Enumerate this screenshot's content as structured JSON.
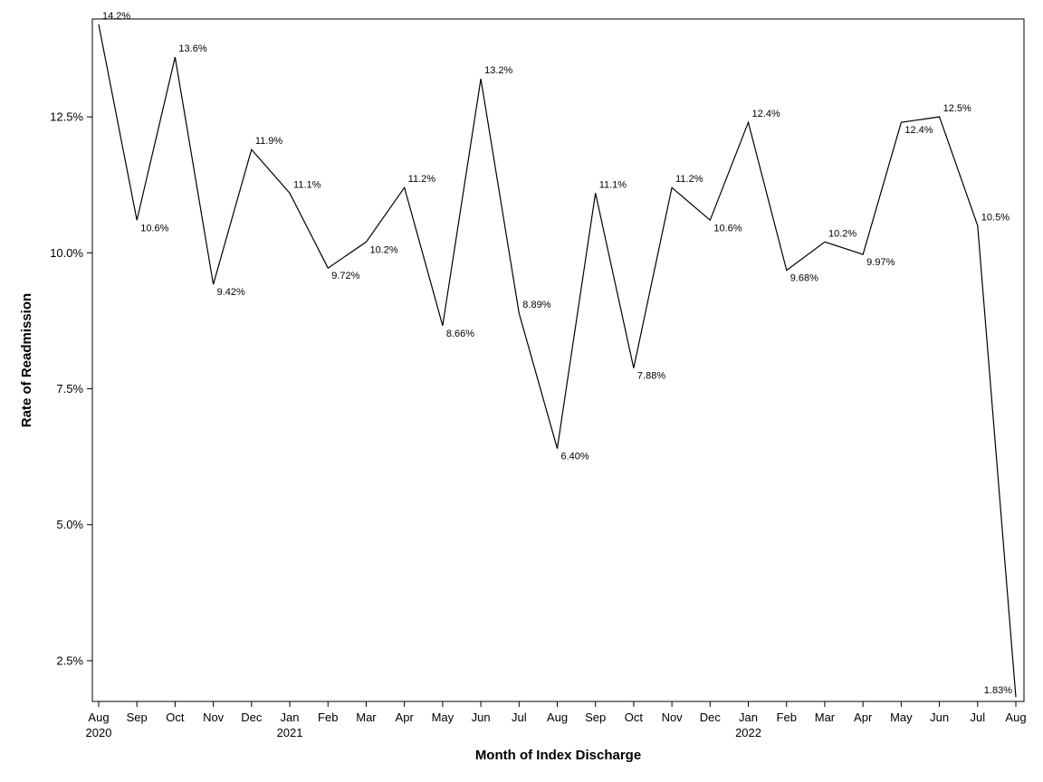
{
  "chart_data": {
    "type": "line",
    "title": "",
    "xlabel": "Month of Index Discharge",
    "ylabel": "Rate of Readmission",
    "ylim": [
      1.75,
      14.3
    ],
    "y_ticks": [
      {
        "value": 2.5,
        "label": "2.5%"
      },
      {
        "value": 5.0,
        "label": "5.0%"
      },
      {
        "value": 7.5,
        "label": "7.5%"
      },
      {
        "value": 10.0,
        "label": "10.0%"
      },
      {
        "value": 12.5,
        "label": "12.5%"
      }
    ],
    "categories": [
      "Aug",
      "Sep",
      "Oct",
      "Nov",
      "Dec",
      "Jan",
      "Feb",
      "Mar",
      "Apr",
      "May",
      "Jun",
      "Jul",
      "Aug",
      "Sep",
      "Oct",
      "Nov",
      "Dec",
      "Jan",
      "Feb",
      "Mar",
      "Apr",
      "May",
      "Jun",
      "Jul",
      "Aug"
    ],
    "year_labels": [
      {
        "index": 0,
        "label": "2020"
      },
      {
        "index": 5,
        "label": "2021"
      },
      {
        "index": 17,
        "label": "2022"
      }
    ],
    "series": [
      {
        "name": "Rate of Readmission",
        "values": [
          14.2,
          10.6,
          13.6,
          9.42,
          11.9,
          11.1,
          9.72,
          10.2,
          11.2,
          8.66,
          13.2,
          8.89,
          6.4,
          11.1,
          7.88,
          11.2,
          10.6,
          12.4,
          9.68,
          10.2,
          9.97,
          12.4,
          12.5,
          10.5,
          1.83
        ],
        "labels": [
          "14.2%",
          "10.6%",
          "13.6%",
          "9.42%",
          "11.9%",
          "11.1%",
          "9.72%",
          "10.2%",
          "11.2%",
          "8.66%",
          "13.2%",
          "8.89%",
          "6.40%",
          "11.1%",
          "7.88%",
          "11.2%",
          "10.6%",
          "12.4%",
          "9.68%",
          "10.2%",
          "9.97%",
          "12.4%",
          "12.5%",
          "10.5%",
          "1.83%"
        ],
        "color": "#000000"
      }
    ],
    "grid": false,
    "legend": "none"
  }
}
